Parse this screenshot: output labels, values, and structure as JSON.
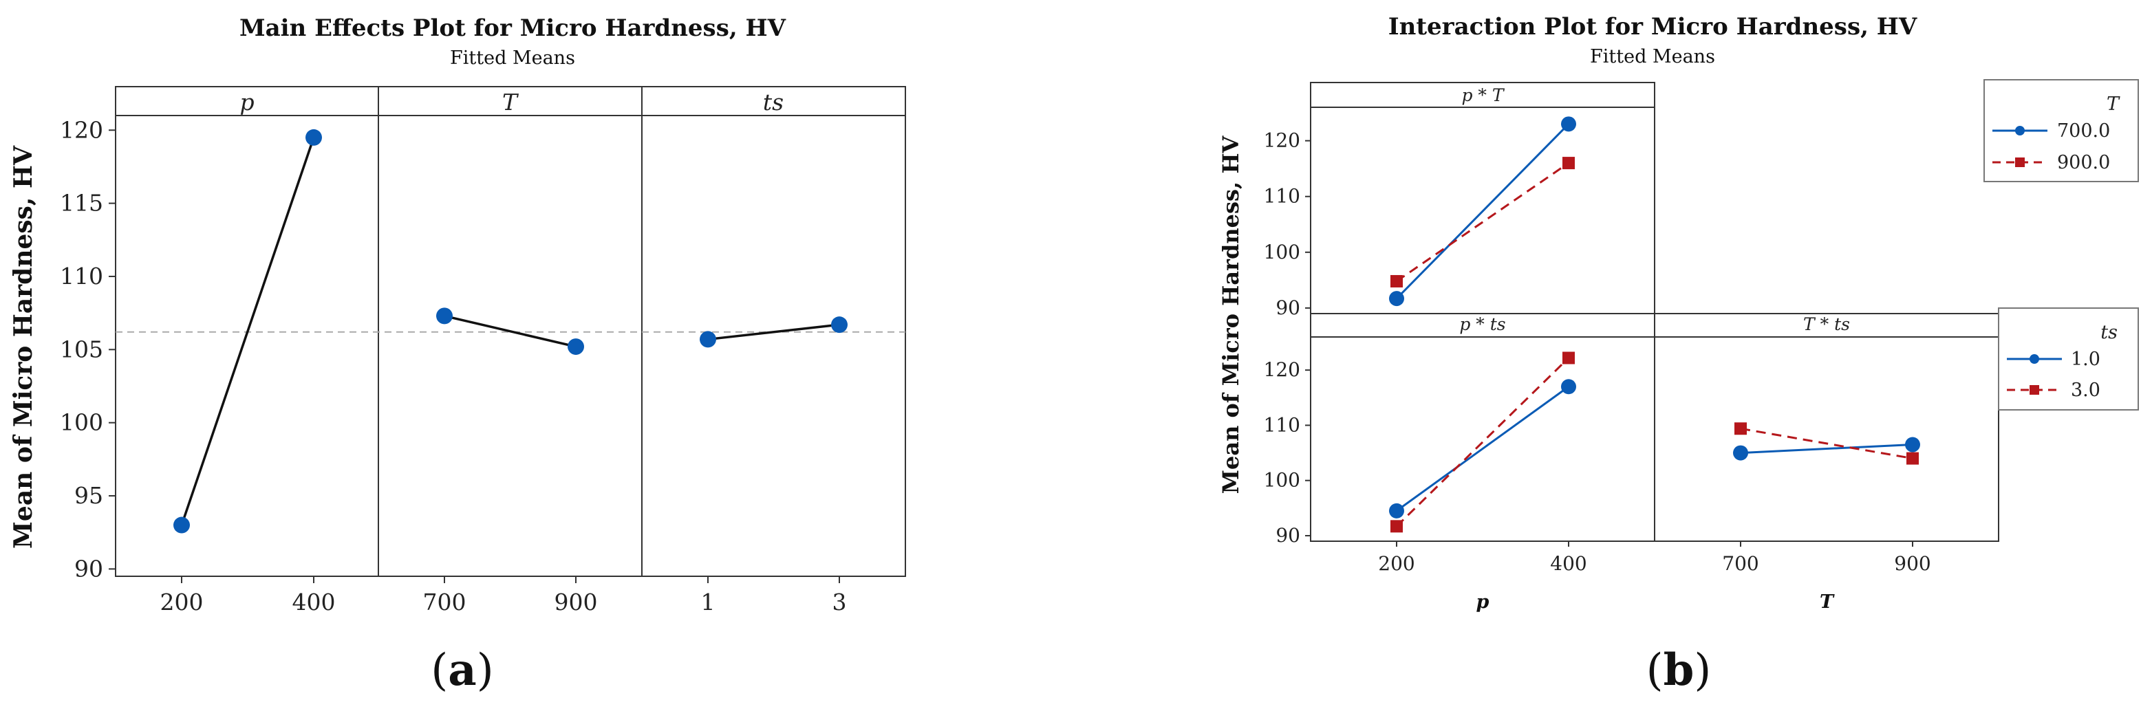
{
  "chart_data": [
    {
      "type": "line",
      "panel_label": "(a)",
      "panel_letter": "a",
      "title": "Main Effects Plot for Micro Hardness, HV",
      "subtitle": "Fitted Means",
      "ylabel": "Mean of Micro Hardness, HV",
      "ylim": [
        89.5,
        121
      ],
      "yticks": [
        90,
        95,
        100,
        105,
        110,
        115,
        120
      ],
      "reference_line": 106.2,
      "colors": {
        "line": "#111111",
        "point": "#0a5bb5",
        "reference": "#aaaaaa"
      },
      "factors": [
        {
          "name": "p",
          "levels": [
            "200",
            "400"
          ],
          "values": [
            93.0,
            119.5
          ]
        },
        {
          "name": "T",
          "levels": [
            "700",
            "900"
          ],
          "values": [
            107.3,
            105.2
          ]
        },
        {
          "name": "ts",
          "levels": [
            "1",
            "3"
          ],
          "values": [
            105.7,
            106.7
          ]
        }
      ]
    },
    {
      "type": "line",
      "panel_label": "(b)",
      "panel_letter": "b",
      "title": "Interaction Plot for Micro Hardness, HV",
      "subtitle": "Fitted Means",
      "ylabel": "Mean of Micro Hardness, HV",
      "xlabels": [
        "p",
        "T"
      ],
      "ylim": [
        89,
        126
      ],
      "yticks": [
        90,
        100,
        110,
        120
      ],
      "colors": {
        "series1": "#0a5bb5",
        "series2": "#b5171b"
      },
      "legends": [
        {
          "title": "T",
          "entries": [
            "700.0",
            "900.0"
          ]
        },
        {
          "title": "ts",
          "entries": [
            "1.0",
            "3.0"
          ]
        }
      ],
      "panels": [
        {
          "strip": "p * T",
          "categories": [
            "200",
            "400"
          ],
          "series": [
            {
              "name": "700.0",
              "values": [
                91.7,
                123.0
              ]
            },
            {
              "name": "900.0",
              "values": [
                94.8,
                116.0
              ]
            }
          ]
        },
        {
          "strip": "p * ts",
          "categories": [
            "200",
            "400"
          ],
          "series": [
            {
              "name": "1.0",
              "values": [
                94.5,
                117.0
              ]
            },
            {
              "name": "3.0",
              "values": [
                91.7,
                122.2
              ]
            }
          ]
        },
        {
          "strip": "T * ts",
          "categories": [
            "700",
            "900"
          ],
          "series": [
            {
              "name": "1.0",
              "values": [
                105.0,
                106.5
              ]
            },
            {
              "name": "3.0",
              "values": [
                109.4,
                104.0
              ]
            }
          ]
        }
      ]
    }
  ]
}
